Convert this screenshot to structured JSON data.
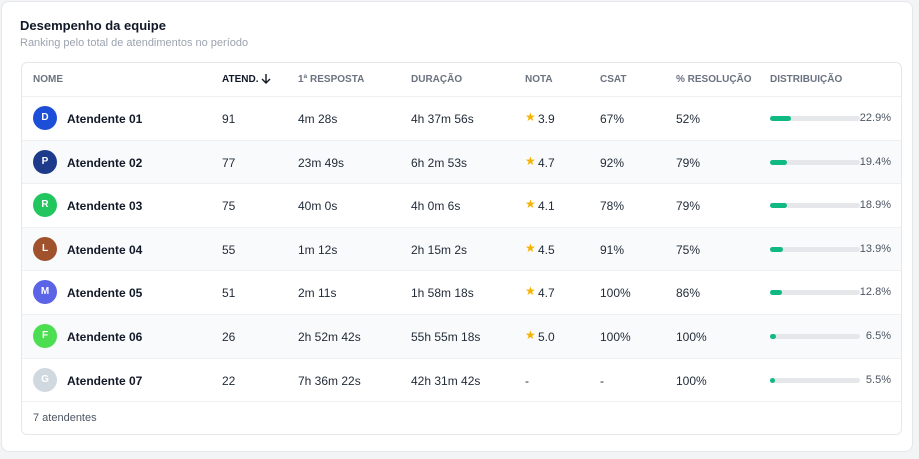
{
  "header": {
    "title": "Desempenho da equipe",
    "subtitle": "Ranking pelo total de atendimentos no período"
  },
  "table": {
    "columns": [
      "NOME",
      "ATEND.",
      "1ª RESPOSTA",
      "DURAÇÃO",
      "NOTA",
      "CSAT",
      "% RESOLUÇÃO",
      "DISTRIBUIÇÃO"
    ],
    "rows": [
      {
        "initial": "D",
        "avatar_color": "#1d4ed8",
        "name": "Atendente 01",
        "atend": "91",
        "resposta": "4m 28s",
        "duracao": "4h 37m 56s",
        "nota": "3.9",
        "csat": "67%",
        "resolucao": "52%",
        "distribuicao": {
          "value": 22.9,
          "label": "22.9%"
        }
      },
      {
        "initial": "P",
        "avatar_color": "#1e3a8a",
        "name": "Atendente 02",
        "atend": "77",
        "resposta": "23m 49s",
        "duracao": "6h 2m 53s",
        "nota": "4.7",
        "csat": "92%",
        "resolucao": "79%",
        "distribuicao": {
          "value": 19.4,
          "label": "19.4%"
        }
      },
      {
        "initial": "R",
        "avatar_color": "#22c55e",
        "name": "Atendente 03",
        "atend": "75",
        "resposta": "40m 0s",
        "duracao": "4h 0m 6s",
        "nota": "4.1",
        "csat": "78%",
        "resolucao": "79%",
        "distribuicao": {
          "value": 18.9,
          "label": "18.9%"
        }
      },
      {
        "initial": "L",
        "avatar_color": "#a0522d",
        "name": "Atendente 04",
        "atend": "55",
        "resposta": "1m 12s",
        "duracao": "2h 15m 2s",
        "nota": "4.5",
        "csat": "91%",
        "resolucao": "75%",
        "distribuicao": {
          "value": 13.9,
          "label": "13.9%"
        }
      },
      {
        "initial": "M",
        "avatar_color": "#5b63e6",
        "name": "Atendente 05",
        "atend": "51",
        "resposta": "2m 11s",
        "duracao": "1h 58m 18s",
        "nota": "4.7",
        "csat": "100%",
        "resolucao": "86%",
        "distribuicao": {
          "value": 12.8,
          "label": "12.8%"
        }
      },
      {
        "initial": "F",
        "avatar_color": "#4ade50",
        "name": "Atendente 06",
        "atend": "26",
        "resposta": "2h 52m 42s",
        "duracao": "55h 55m 18s",
        "nota": "5.0",
        "csat": "100%",
        "resolucao": "100%",
        "distribuicao": {
          "value": 6.5,
          "label": "6.5%"
        }
      },
      {
        "initial": "G",
        "avatar_color": "#d1d9e0",
        "name": "Atendente 07",
        "atend": "22",
        "resposta": "7h 36m 22s",
        "duracao": "42h 31m 42s",
        "nota": "-",
        "csat": "-",
        "resolucao": "100%",
        "distribuicao": {
          "value": 5.5,
          "label": "5.5%"
        }
      }
    ],
    "footer": "7 atendentes"
  }
}
